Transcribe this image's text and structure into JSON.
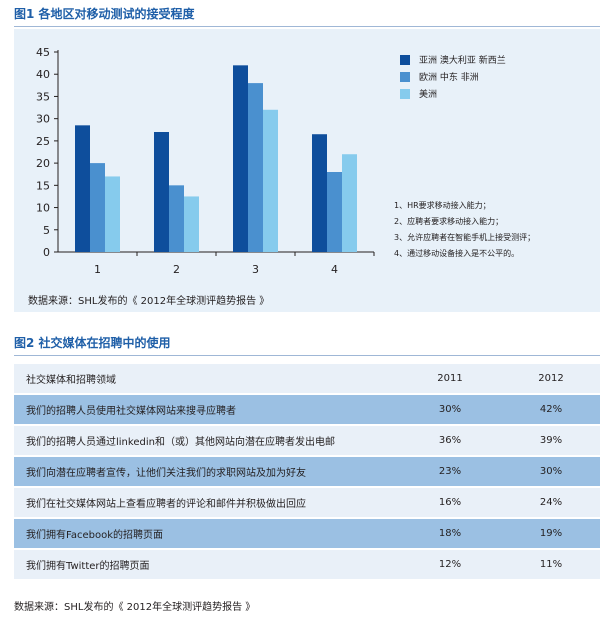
{
  "figure1": {
    "title": "图1  各地区对移动测试的接受程度",
    "source": "数据来源：SHL发布的《 2012年全球测评趋势报告 》",
    "notes": [
      "1、HR要求移动接入能力；",
      "2、应聘者要求移动接入能力；",
      "3、允许应聘者在智能手机上接受测评；",
      "4、通过移动设备接入是不公平的。"
    ]
  },
  "chart_data": {
    "type": "bar",
    "categories": [
      "1",
      "2",
      "3",
      "4"
    ],
    "series": [
      {
        "name": "亚洲 澳大利亚 新西兰",
        "color": "#0e4e9c",
        "values": [
          28.5,
          27,
          42,
          26.5
        ]
      },
      {
        "name": "欧洲 中东 非洲",
        "color": "#4a90cf",
        "values": [
          20,
          15,
          38,
          18
        ]
      },
      {
        "name": "美洲",
        "color": "#86cbed",
        "values": [
          17,
          12.5,
          32,
          22
        ]
      }
    ],
    "yticks": [
      "0",
      "5",
      "10",
      "15",
      "20",
      "25",
      "30",
      "35",
      "40",
      "45"
    ],
    "ylim": [
      0,
      45
    ],
    "legend": "right"
  },
  "figure2": {
    "title": "图2  社交媒体在招聘中的使用",
    "header": [
      "社交媒体和招聘领域",
      "2011",
      "2012"
    ],
    "rows": [
      [
        "我们的招聘人员使用社交媒体网站来搜寻应聘者",
        "30%",
        "42%"
      ],
      [
        "我们的招聘人员通过linkedin和（或）其他网站向潜在应聘者发出电邮",
        "36%",
        "39%"
      ],
      [
        "我们向潜在应聘者宣传，让他们关注我们的求职网站及加为好友",
        "23%",
        "30%"
      ],
      [
        "我们在社交媒体网站上查看应聘者的评论和邮件并积极做出回应",
        "16%",
        "24%"
      ],
      [
        "我们拥有Facebook的招聘页面",
        "18%",
        "19%"
      ],
      [
        "我们拥有Twitter的招聘页面",
        "12%",
        "11%"
      ]
    ],
    "source": "数据来源：SHL发布的《 2012年全球测评趋势报告 》"
  }
}
